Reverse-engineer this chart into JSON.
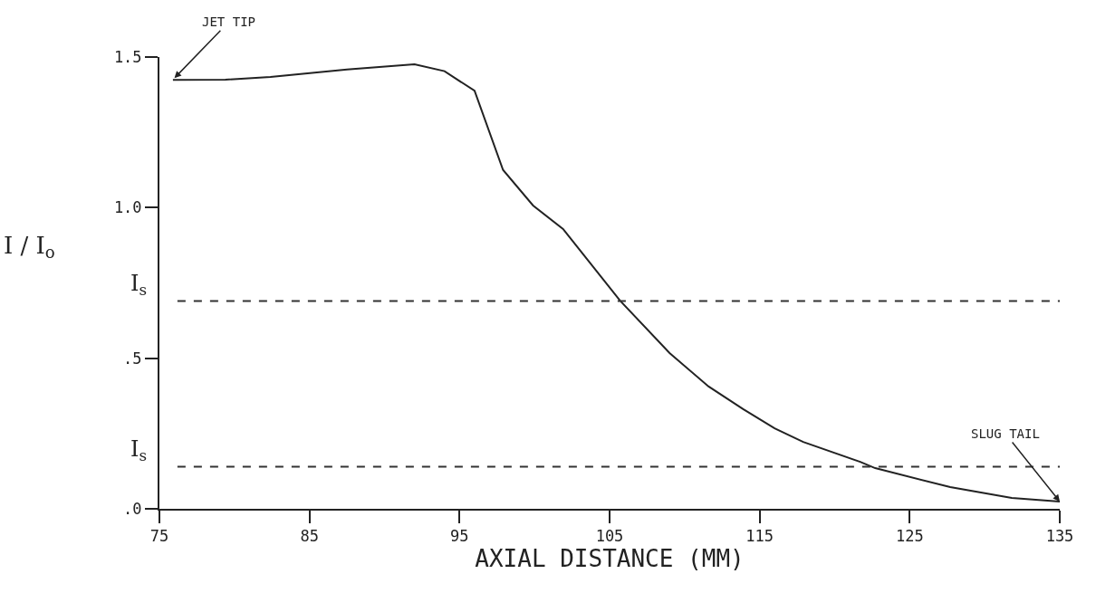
{
  "chart_data": {
    "type": "line",
    "xlabel": "AXIAL DISTANCE (MM)",
    "ylabel": "I / I$_{o}$",
    "series": [
      {
        "color": "#222222",
        "x": [
          75.9,
          79.4,
          82.4,
          87.5,
          92.0,
          94.0,
          96.0,
          97.9,
          99.9,
          101.9,
          105.7,
          109.0,
          111.6,
          113.9,
          116.0,
          117.9,
          121.7,
          122.7,
          127.7,
          131.8,
          135.0
        ],
        "values": [
          1.424,
          1.425,
          1.434,
          1.459,
          1.476,
          1.453,
          1.388,
          1.125,
          1.007,
          0.929,
          0.691,
          0.517,
          0.406,
          0.331,
          0.267,
          0.222,
          0.156,
          0.135,
          0.072,
          0.036,
          0.024
        ]
      }
    ],
    "xlim": [
      75,
      135
    ],
    "xticks": [
      75,
      85,
      95,
      105,
      115,
      125,
      135
    ],
    "ylim": [
      0,
      1.5
    ],
    "yticks": [
      {
        "value": 0,
        "label": ".0"
      },
      {
        "value": 0.5,
        "label": ".5"
      },
      {
        "value": 1,
        "label": "1.0"
      },
      {
        "value": 1.5,
        "label": "1.5"
      }
    ],
    "ref_lines": [
      {
        "axis": "y",
        "value": 0.69,
        "label": "I$_{s}$",
        "color": "#333333",
        "line_style": "dashed"
      },
      {
        "axis": "y",
        "value": 0.14,
        "label": "I$_{s}$",
        "color": "#333333",
        "line_style": "dashed"
      }
    ],
    "annotations": [
      {
        "text": "JET TIP",
        "x": 76,
        "y": 1.43
      },
      {
        "text": "SLUG TAIL",
        "x": 135,
        "y": 0.024
      }
    ],
    "grid": false,
    "marker": "none",
    "line_style": "solid"
  }
}
